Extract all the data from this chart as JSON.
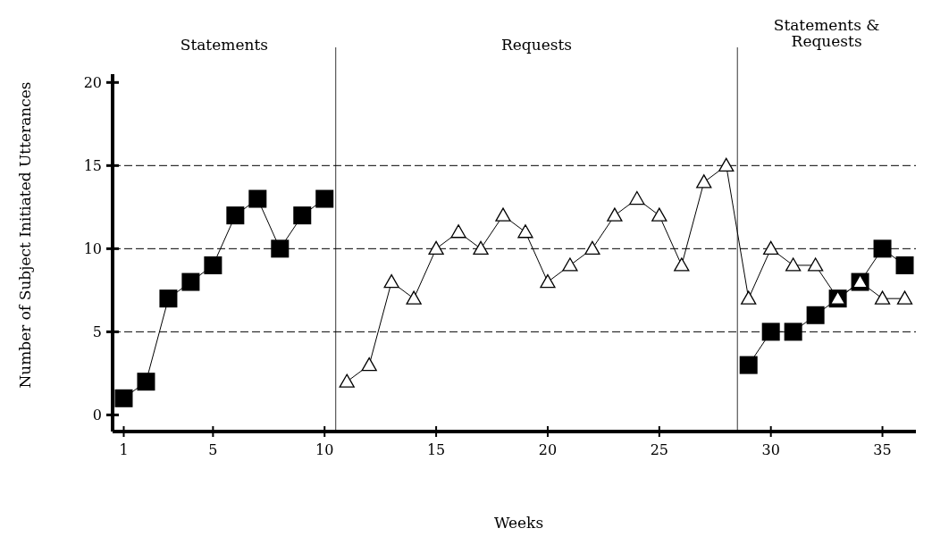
{
  "chart_data": {
    "type": "line",
    "xlabel": "Weeks",
    "ylabel": "Number of Subject Initiated Utterances",
    "x": [
      1,
      2,
      3,
      4,
      5,
      6,
      7,
      8,
      9,
      10,
      11,
      12,
      13,
      14,
      15,
      16,
      17,
      18,
      19,
      20,
      21,
      22,
      23,
      24,
      25,
      26,
      27,
      28,
      29,
      30,
      31,
      32,
      33,
      34,
      35,
      36
    ],
    "series": [
      {
        "color": "#000000",
        "marker": "square",
        "values": [
          1,
          2,
          7,
          8,
          9,
          12,
          13,
          10,
          12,
          13,
          null,
          null,
          null,
          null,
          null,
          null,
          null,
          null,
          null,
          null,
          null,
          null,
          null,
          null,
          null,
          null,
          null,
          null,
          3,
          5,
          5,
          6,
          7,
          8,
          10,
          9
        ]
      },
      {
        "color": "#000000",
        "marker": "triangle",
        "values": [
          null,
          null,
          null,
          null,
          null,
          null,
          null,
          null,
          null,
          null,
          2,
          3,
          8,
          7,
          10,
          11,
          10,
          12,
          11,
          8,
          9,
          10,
          12,
          13,
          12,
          9,
          14,
          15,
          7,
          10,
          9,
          9,
          7,
          8,
          7,
          7
        ]
      }
    ],
    "xlim": [
      0.5,
      36.5
    ],
    "xticks": [
      1,
      5,
      10,
      15,
      20,
      25,
      30,
      35
    ],
    "ylim": [
      -1,
      20.5
    ],
    "yticks": [
      0,
      5,
      10,
      15,
      20
    ],
    "ref_lines": [
      {
        "axis": "y",
        "value": 5,
        "line_style": "dashed"
      },
      {
        "axis": "y",
        "value": 10,
        "line_style": "dashed"
      },
      {
        "axis": "y",
        "value": 15,
        "line_style": "dashed"
      },
      {
        "axis": "x",
        "value": 10.5,
        "line_style": "solid"
      },
      {
        "axis": "x",
        "value": 28.5,
        "line_style": "solid"
      }
    ],
    "annotations": [
      "Statements",
      "Requests",
      "Statements &\nRequests"
    ]
  }
}
